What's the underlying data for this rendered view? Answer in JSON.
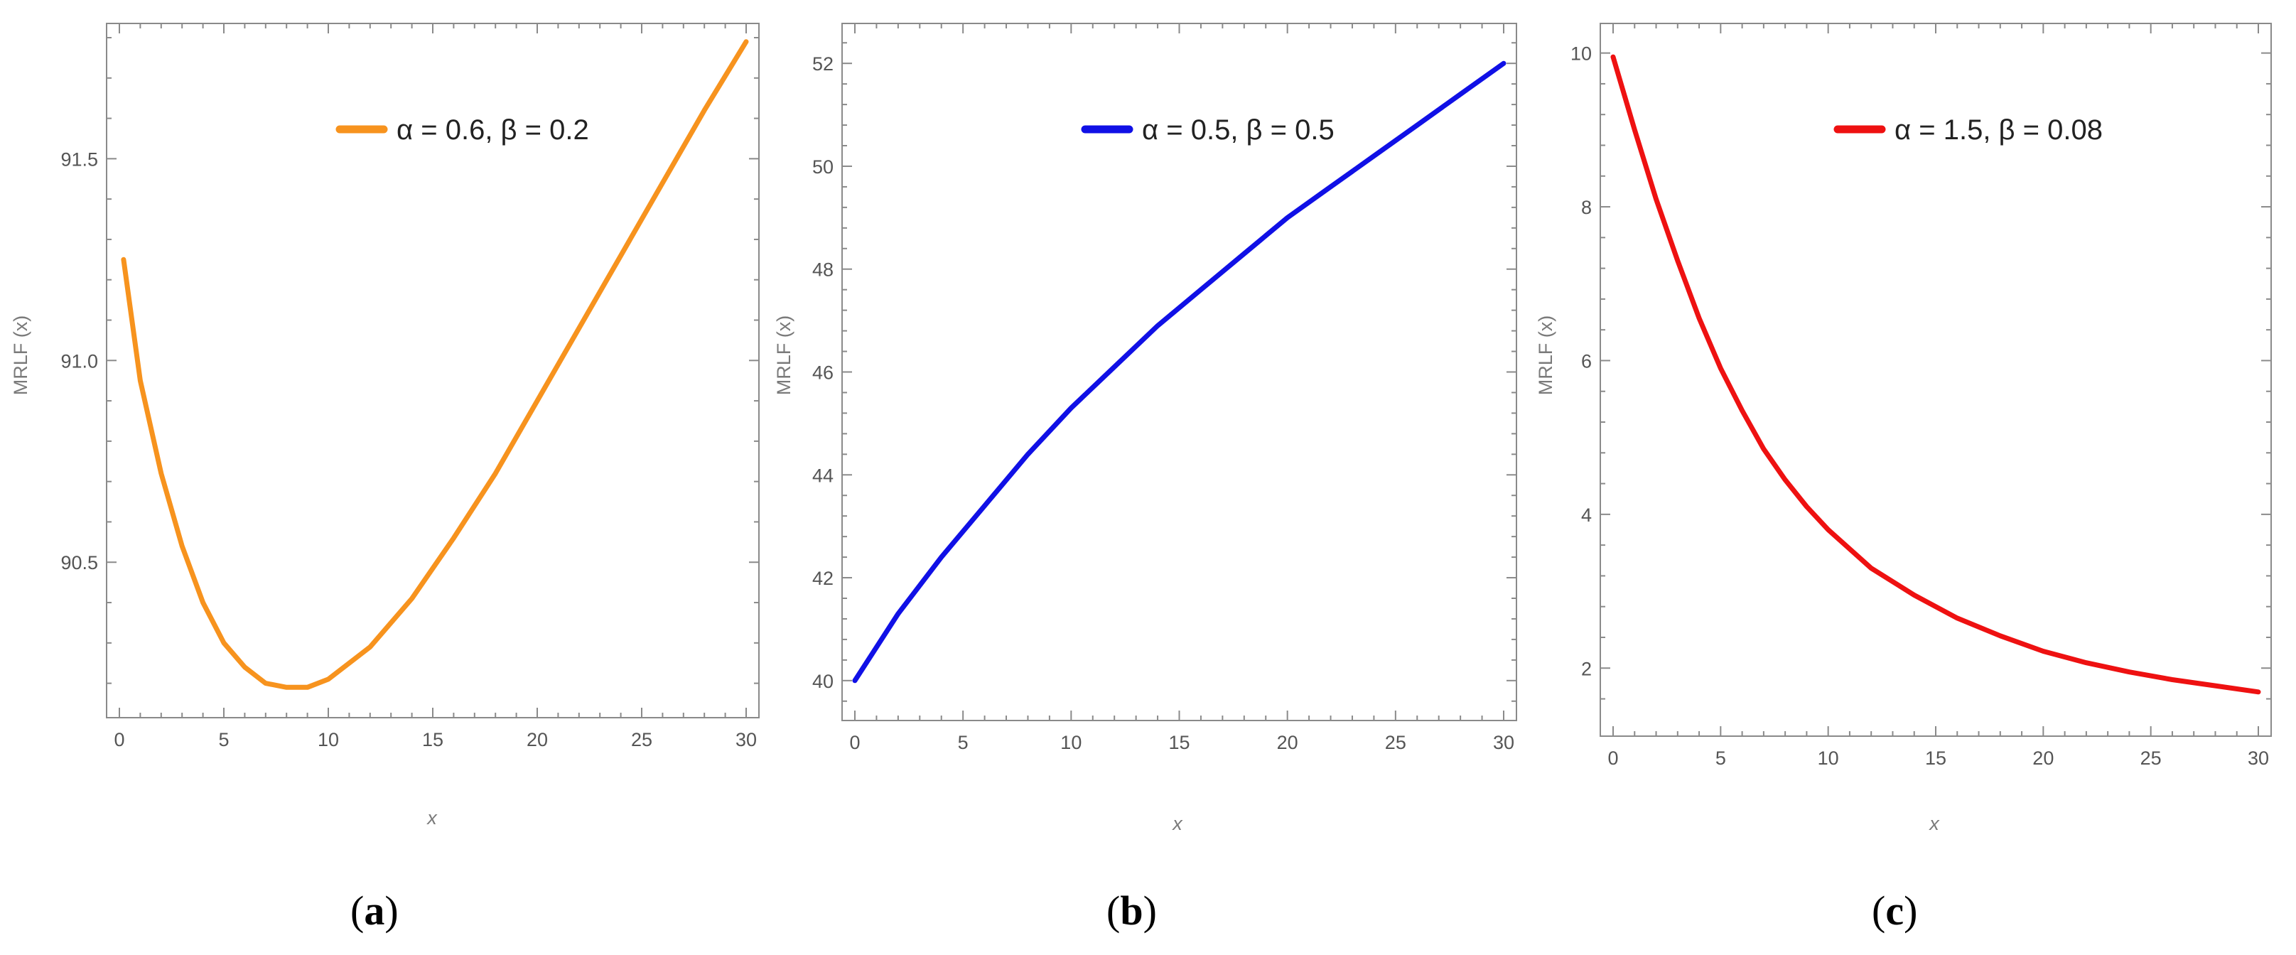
{
  "chart_data": [
    {
      "type": "line",
      "caption_letter": "a",
      "ylabel": "MRLF (x)",
      "xlabel": "x",
      "xlim": [
        0,
        30
      ],
      "ylim": [
        90.15,
        91.8
      ],
      "xticks": [
        0,
        5,
        10,
        15,
        20,
        25,
        30
      ],
      "yticks": [
        90.5,
        91.0,
        91.5
      ],
      "ytick_labels": [
        "90.5",
        "91.0",
        "91.5"
      ],
      "series": [
        {
          "name": "α = 0.6, β = 0.2",
          "color": "#f7931e",
          "x": [
            0.2,
            1,
            2,
            3,
            4,
            5,
            6,
            7,
            8,
            9,
            10,
            12,
            14,
            16,
            18,
            20,
            22,
            24,
            26,
            28,
            30
          ],
          "y": [
            91.25,
            90.95,
            90.72,
            90.54,
            90.4,
            90.3,
            90.24,
            90.2,
            90.19,
            90.19,
            90.21,
            90.29,
            90.41,
            90.56,
            90.72,
            90.9,
            91.08,
            91.26,
            91.44,
            91.62,
            91.79
          ]
        }
      ],
      "legend_position": "top-center"
    },
    {
      "type": "line",
      "caption_letter": "b",
      "ylabel": "MRLF (x)",
      "xlabel": "x",
      "xlim": [
        0,
        30
      ],
      "ylim": [
        39.5,
        52.5
      ],
      "xticks": [
        0,
        5,
        10,
        15,
        20,
        25,
        30
      ],
      "yticks": [
        40,
        42,
        44,
        46,
        48,
        50,
        52
      ],
      "ytick_labels": [
        "40",
        "42",
        "44",
        "46",
        "48",
        "50",
        "52"
      ],
      "series": [
        {
          "name": "α = 0.5, β = 0.5",
          "color": "#1010e6",
          "x": [
            0,
            2,
            4,
            6,
            8,
            10,
            12,
            14,
            16,
            18,
            20,
            22,
            24,
            26,
            28,
            30
          ],
          "y": [
            40.0,
            41.3,
            42.4,
            43.4,
            44.4,
            45.3,
            46.1,
            46.9,
            47.6,
            48.3,
            49.0,
            49.6,
            50.2,
            50.8,
            51.4,
            52.0
          ]
        }
      ],
      "legend_position": "top-center"
    },
    {
      "type": "line",
      "caption_letter": "c",
      "ylabel": "MRLF (x)",
      "xlabel": "x",
      "xlim": [
        0,
        30
      ],
      "ylim": [
        1.3,
        10.2
      ],
      "xticks": [
        0,
        5,
        10,
        15,
        20,
        25,
        30
      ],
      "yticks": [
        2,
        4,
        6,
        8,
        10
      ],
      "ytick_labels": [
        "2",
        "4",
        "6",
        "8",
        "10"
      ],
      "series": [
        {
          "name": "α = 1.5, β = 0.08",
          "color": "#ee1111",
          "x": [
            0,
            1,
            2,
            3,
            4,
            5,
            6,
            7,
            8,
            9,
            10,
            12,
            14,
            16,
            18,
            20,
            22,
            24,
            26,
            28,
            30
          ],
          "y": [
            9.95,
            9.0,
            8.1,
            7.3,
            6.55,
            5.9,
            5.35,
            4.85,
            4.45,
            4.1,
            3.8,
            3.3,
            2.95,
            2.65,
            2.42,
            2.22,
            2.07,
            1.95,
            1.85,
            1.77,
            1.69
          ]
        }
      ],
      "legend_position": "top-center"
    }
  ]
}
